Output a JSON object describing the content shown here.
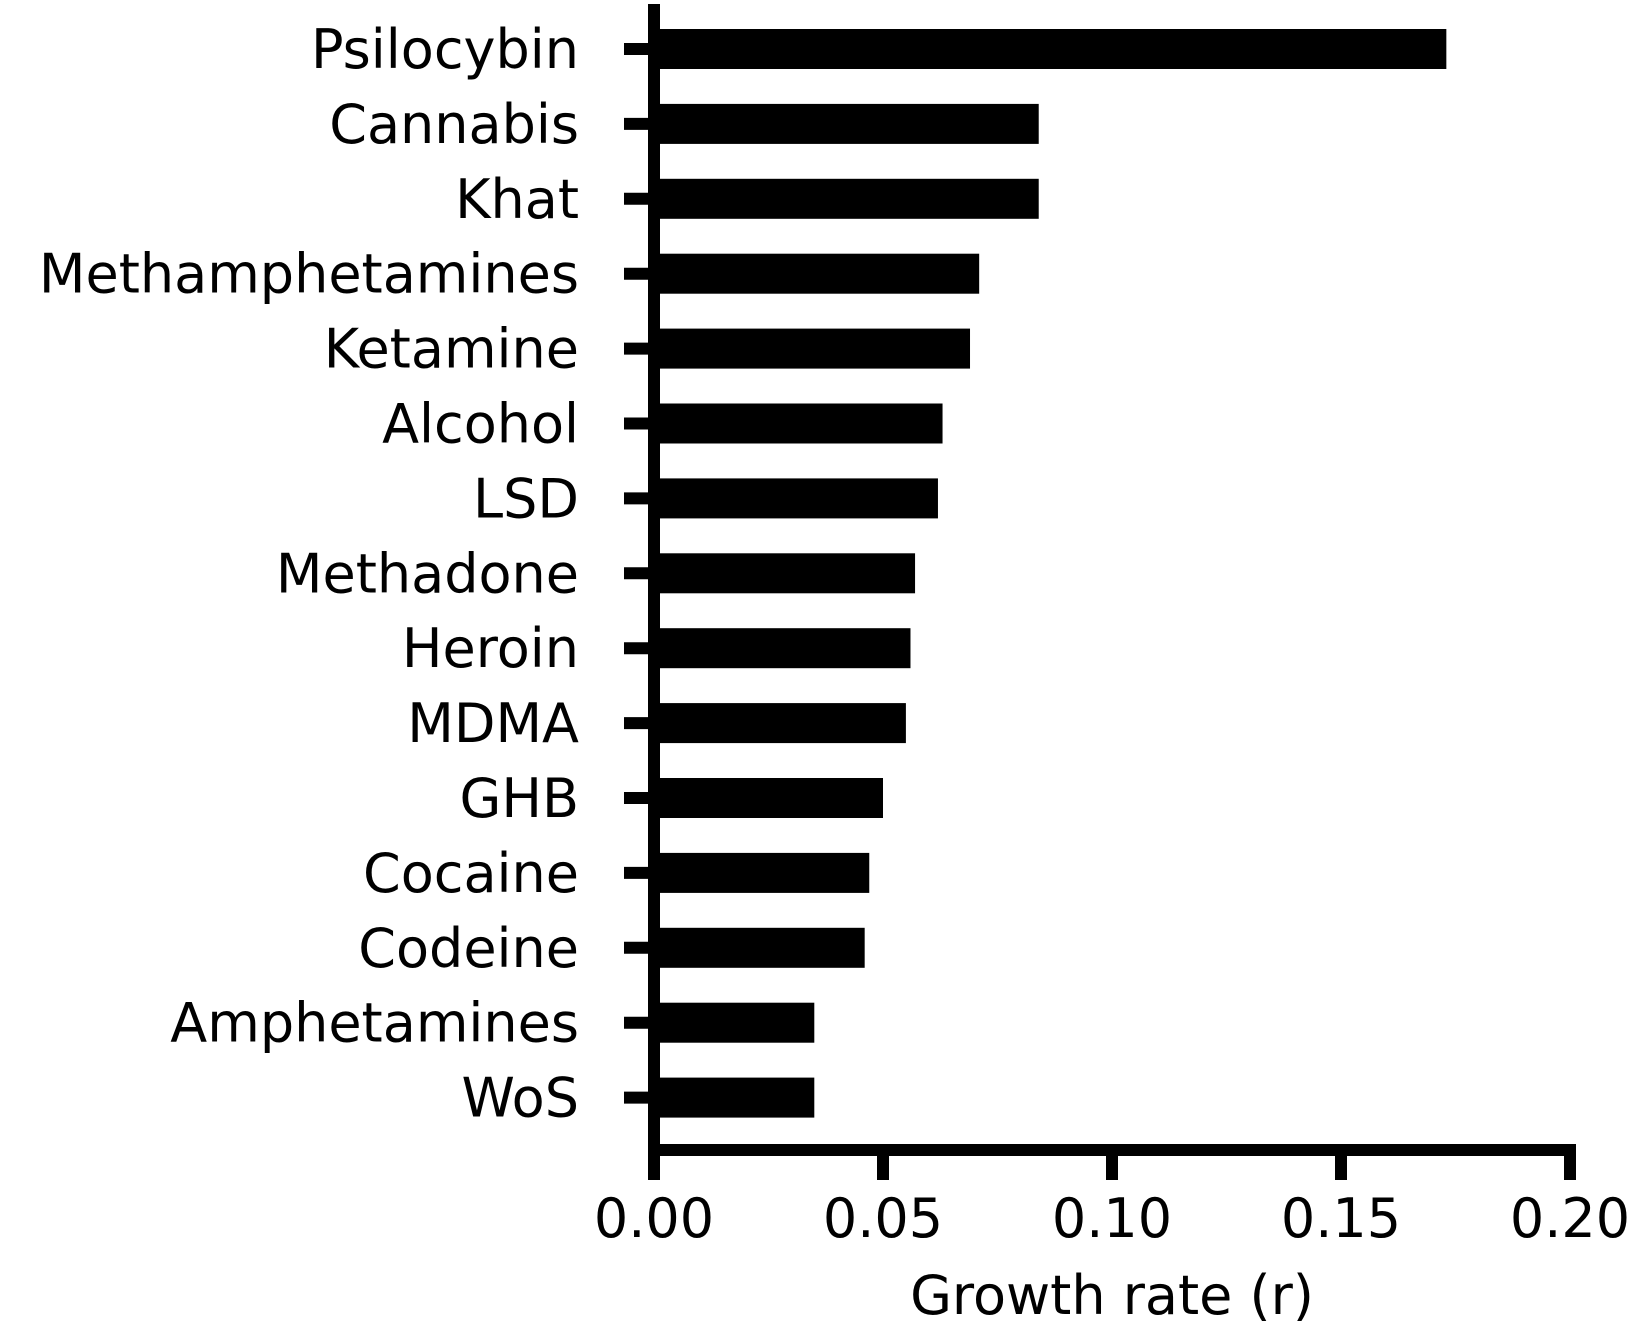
{
  "chart_data": {
    "type": "bar",
    "orientation": "horizontal",
    "categories": [
      "Psilocybin",
      "Cannabis",
      "Khat",
      "Methamphetamines",
      "Ketamine",
      "Alcohol",
      "LSD",
      "Methadone",
      "Heroin",
      "MDMA",
      "GHB",
      "Cocaine",
      "Codeine",
      "Amphetamines",
      "WoS"
    ],
    "values": [
      0.173,
      0.084,
      0.084,
      0.071,
      0.069,
      0.063,
      0.062,
      0.057,
      0.056,
      0.055,
      0.05,
      0.047,
      0.046,
      0.035,
      0.035
    ],
    "title": "",
    "xlabel": "Growth rate (r)",
    "ylabel": "",
    "xlim": [
      0,
      0.2
    ],
    "xticks": [
      0.0,
      0.05,
      0.1,
      0.15,
      0.2
    ],
    "xtick_labels": [
      "0.00",
      "0.05",
      "0.10",
      "0.15",
      "0.20"
    ],
    "grid": false,
    "bar_color": "#000000"
  }
}
